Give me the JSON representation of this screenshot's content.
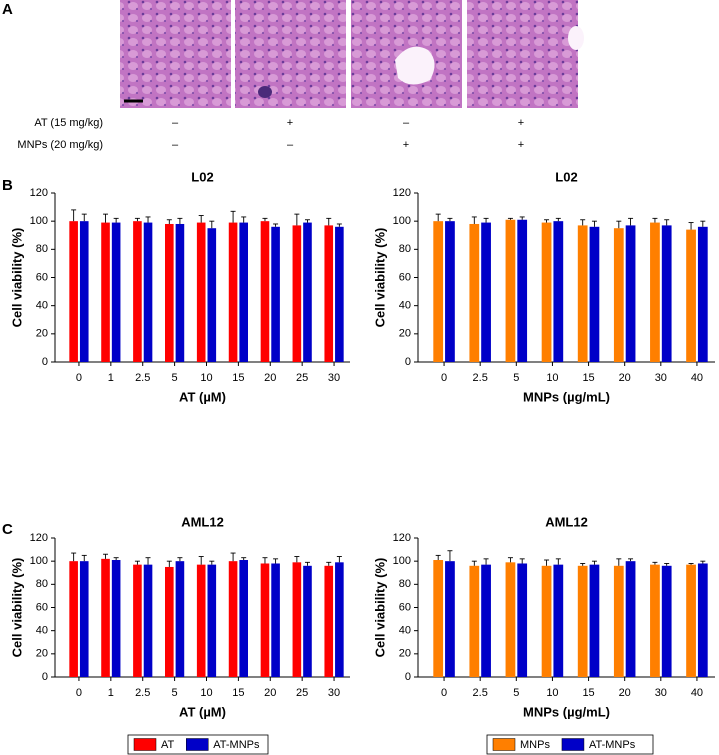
{
  "panel_a": {
    "label": "A",
    "rows": [
      {
        "label": "AT (15 mg/kg)",
        "cells": [
          "–",
          "+",
          "–",
          "+"
        ]
      },
      {
        "label": "MNPs (20 mg/kg)",
        "cells": [
          "–",
          "–",
          "+",
          "+"
        ]
      }
    ]
  },
  "panel_labels": [
    "B",
    "C"
  ],
  "chart_data": [
    {
      "type": "bar",
      "title": "L02",
      "xlabel": "AT (µM)",
      "ylabel": "Cell viability (%)",
      "categories": [
        "0",
        "1",
        "2.5",
        "5",
        "10",
        "15",
        "20",
        "25",
        "30"
      ],
      "series": [
        {
          "name": "AT",
          "color": "#ff0000",
          "values": [
            100,
            99,
            100,
            98,
            99,
            99,
            100,
            97,
            97
          ],
          "errors": [
            8,
            6,
            2,
            3,
            5,
            8,
            2,
            8,
            5
          ]
        },
        {
          "name": "AT-MNPs",
          "color": "#0000c8",
          "values": [
            100,
            99,
            99,
            98,
            95,
            99,
            96,
            99,
            96
          ],
          "errors": [
            5,
            3,
            4,
            4,
            5,
            4,
            2,
            2,
            2
          ]
        }
      ],
      "ylim": [
        0,
        120
      ],
      "yticks": [
        0,
        20,
        40,
        60,
        80,
        100,
        120
      ]
    },
    {
      "type": "bar",
      "title": "L02",
      "xlabel": "MNPs (µg/mL)",
      "ylabel": "Cell viability (%)",
      "categories": [
        "0",
        "2.5",
        "5",
        "10",
        "15",
        "20",
        "30",
        "40"
      ],
      "series": [
        {
          "name": "MNPs",
          "color": "#ff7f00",
          "values": [
            100,
            98,
            101,
            99,
            97,
            95,
            99,
            94
          ],
          "errors": [
            5,
            5,
            1,
            2,
            4,
            5,
            3,
            5
          ]
        },
        {
          "name": "AT-MNPs",
          "color": "#0000c8",
          "values": [
            100,
            99,
            101,
            100,
            96,
            97,
            97,
            96
          ],
          "errors": [
            2,
            3,
            2,
            2,
            4,
            5,
            4,
            4
          ]
        }
      ],
      "ylim": [
        0,
        120
      ],
      "yticks": [
        0,
        20,
        40,
        60,
        80,
        100,
        120
      ]
    },
    {
      "type": "bar",
      "title": "AML12",
      "xlabel": "AT (µM)",
      "ylabel": "Cell viability (%)",
      "categories": [
        "0",
        "1",
        "2.5",
        "5",
        "10",
        "15",
        "20",
        "25",
        "30"
      ],
      "series": [
        {
          "name": "AT",
          "color": "#ff0000",
          "values": [
            100,
            102,
            97,
            95,
            97,
            100,
            98,
            99,
            96
          ],
          "errors": [
            7,
            4,
            3,
            5,
            7,
            7,
            5,
            5,
            3
          ]
        },
        {
          "name": "AT-MNPs",
          "color": "#0000c8",
          "values": [
            100,
            101,
            97,
            100,
            97,
            101,
            98,
            96,
            99
          ],
          "errors": [
            5,
            2,
            6,
            3,
            3,
            2,
            4,
            3,
            5
          ]
        }
      ],
      "ylim": [
        0,
        120
      ],
      "yticks": [
        0,
        20,
        40,
        60,
        80,
        100,
        120
      ]
    },
    {
      "type": "bar",
      "title": "AML12",
      "xlabel": "MNPs (µg/mL)",
      "ylabel": "Cell viability (%)",
      "categories": [
        "0",
        "2.5",
        "5",
        "10",
        "15",
        "20",
        "30",
        "40"
      ],
      "series": [
        {
          "name": "MNPs",
          "color": "#ff7f00",
          "values": [
            101,
            96,
            99,
            96,
            96,
            96,
            97,
            97
          ],
          "errors": [
            4,
            4,
            4,
            5,
            2,
            6,
            2,
            1
          ]
        },
        {
          "name": "AT-MNPs",
          "color": "#0000c8",
          "values": [
            100,
            97,
            98,
            97,
            97,
            100,
            96,
            98
          ],
          "errors": [
            9,
            5,
            4,
            5,
            3,
            2,
            2,
            2
          ]
        }
      ],
      "ylim": [
        0,
        120
      ],
      "yticks": [
        0,
        20,
        40,
        60,
        80,
        100,
        120
      ]
    }
  ]
}
